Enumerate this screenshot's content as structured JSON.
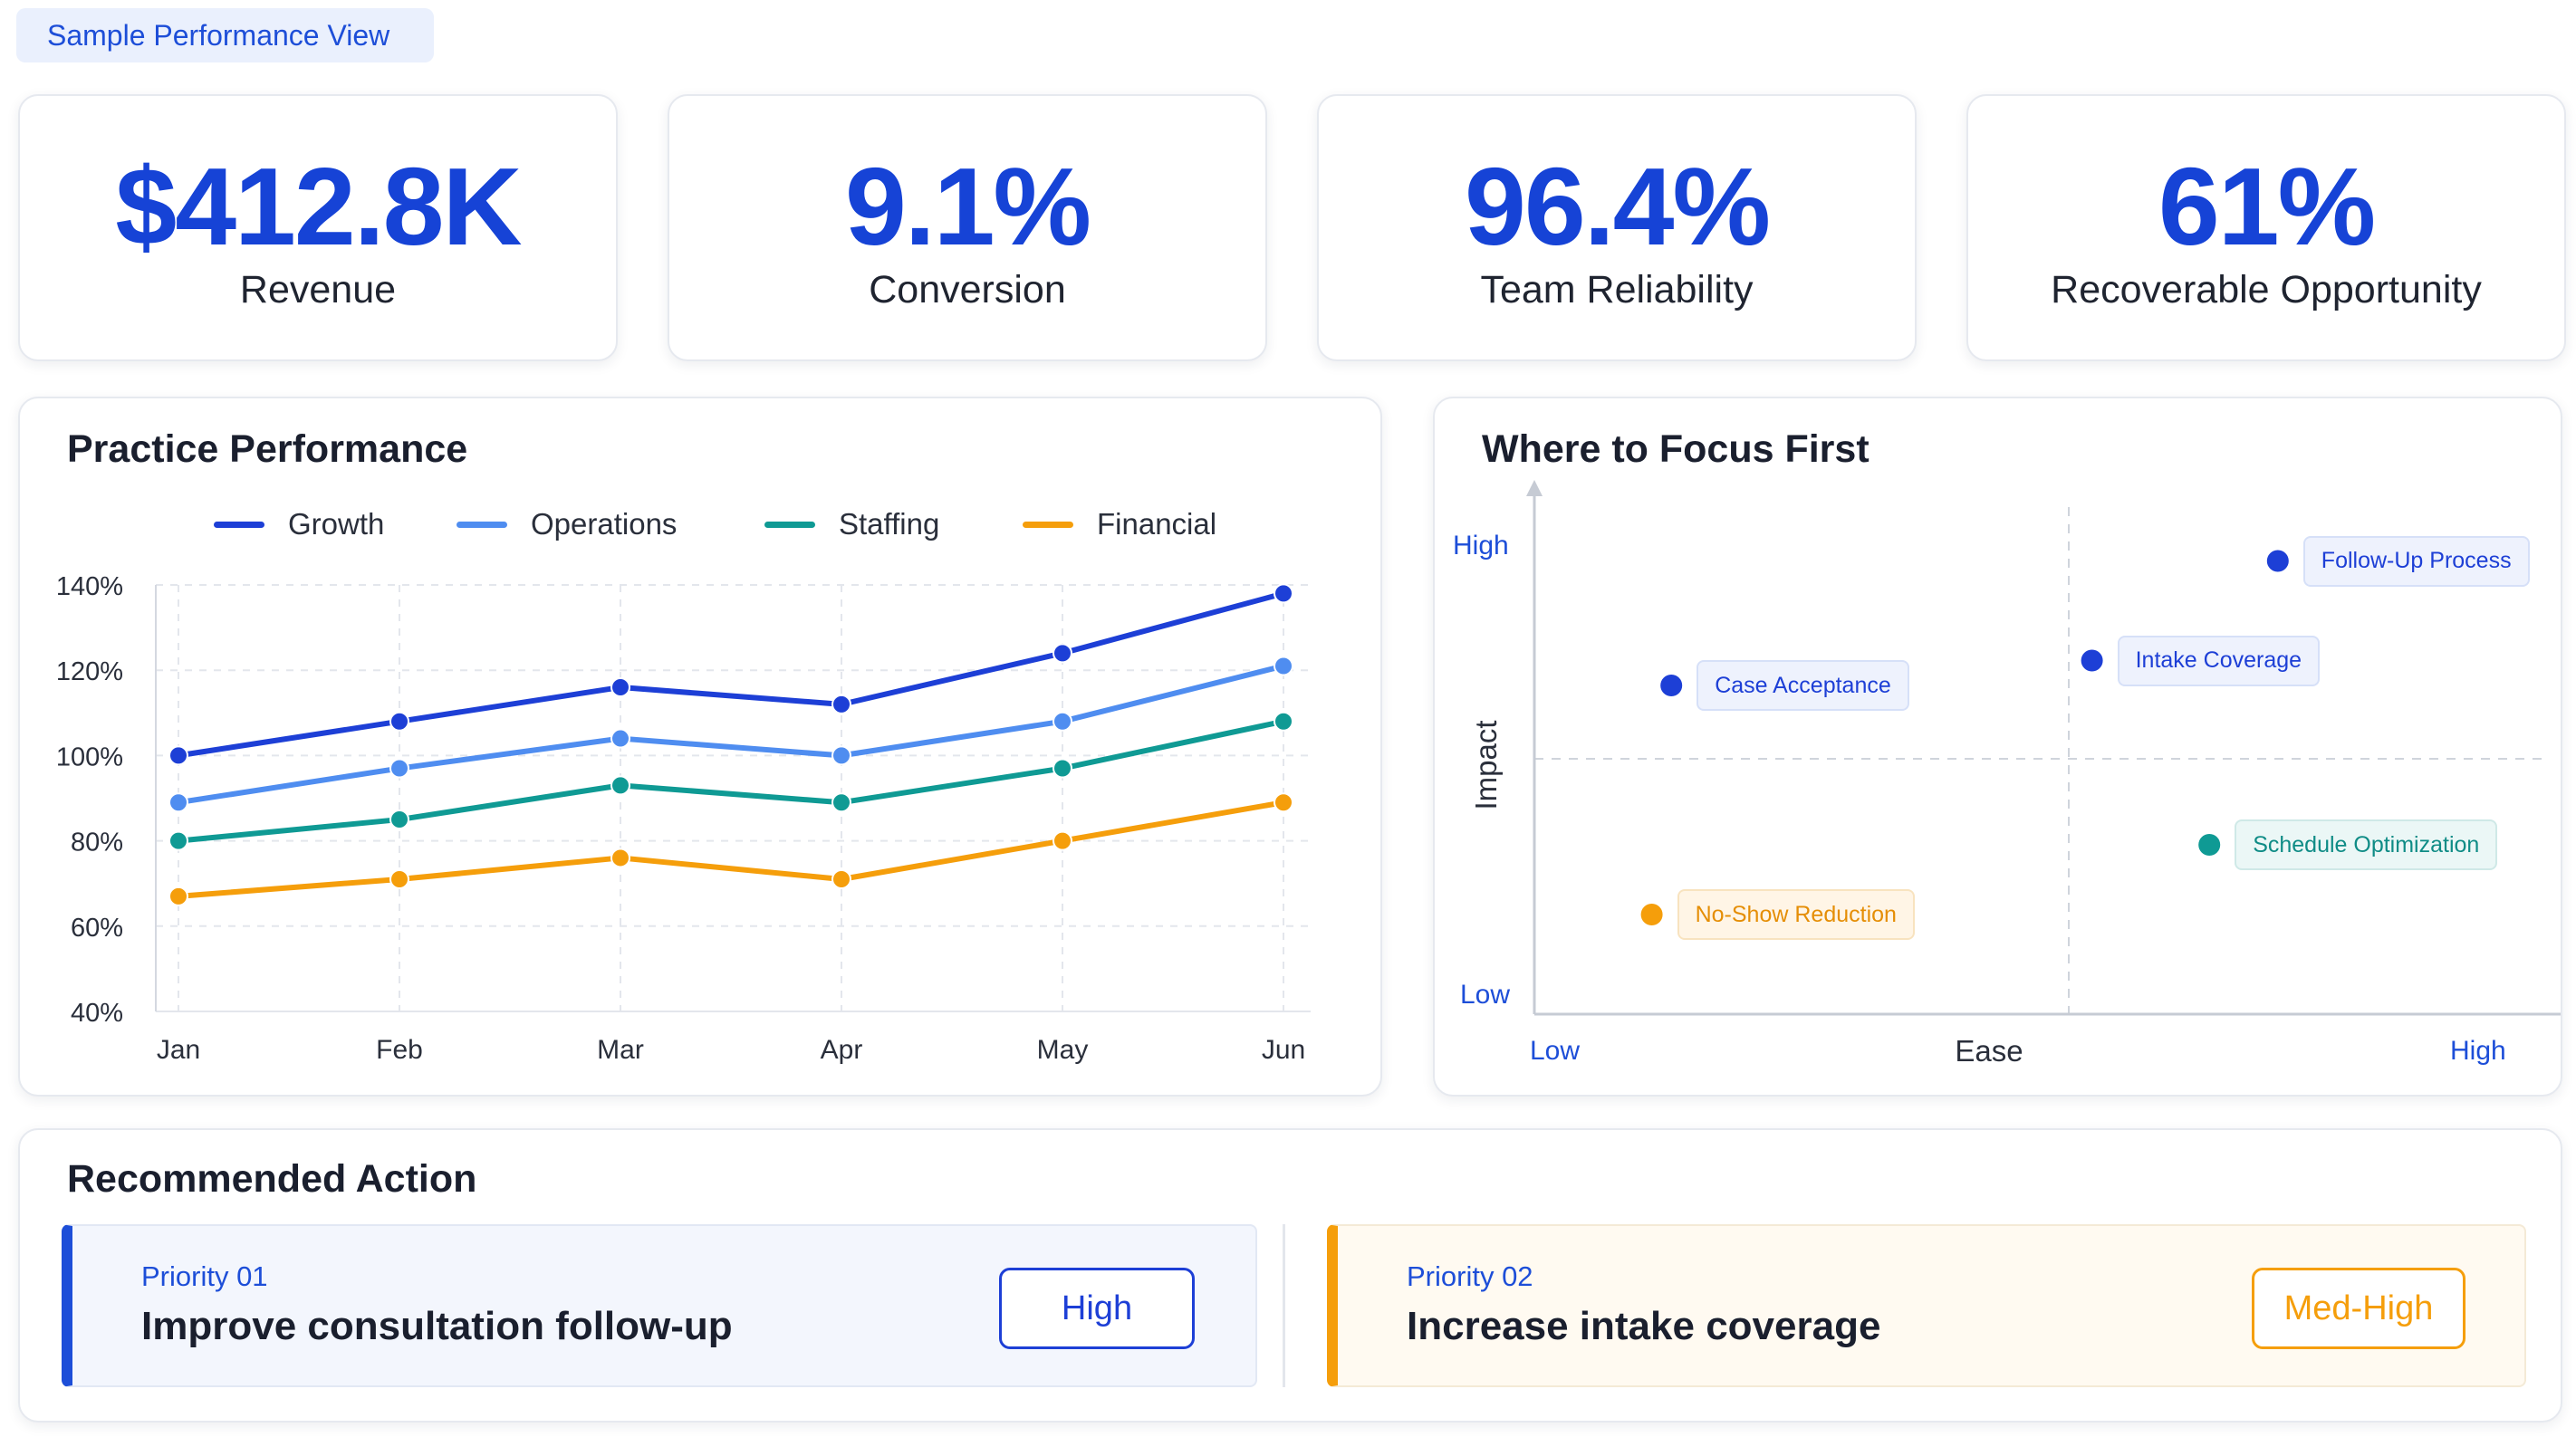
{
  "header": {
    "view_label": "Sample Performance View"
  },
  "kpis": [
    {
      "value": "$412.8K",
      "label": "Revenue"
    },
    {
      "value": "9.1%",
      "label": "Conversion"
    },
    {
      "value": "96.4%",
      "label": "Team Reliability"
    },
    {
      "value": "61%",
      "label": "Recoverable Opportunity"
    }
  ],
  "colors": {
    "accent": "#1643d6",
    "growth": "#1d3fd6",
    "operations": "#4f8df0",
    "staffing": "#0f9a94",
    "financial": "#f59e0b",
    "grid": "#e3e6ec"
  },
  "performance": {
    "title": "Practice Performance",
    "chart_data": {
      "type": "line",
      "categories": [
        "Jan",
        "Feb",
        "Mar",
        "Apr",
        "May",
        "Jun"
      ],
      "y_tick_labels": [
        "140%",
        "120%",
        "100%",
        "80%",
        "60%",
        "40%"
      ],
      "ylim": [
        40,
        140
      ],
      "legend_position": "top",
      "grid": true,
      "series": [
        {
          "name": "Growth",
          "color": "#1d3fd6",
          "values": [
            100,
            108,
            116,
            112,
            124,
            138
          ]
        },
        {
          "name": "Operations",
          "color": "#4f8df0",
          "values": [
            89,
            97,
            104,
            100,
            108,
            121
          ]
        },
        {
          "name": "Staffing",
          "color": "#0f9a94",
          "values": [
            80,
            85,
            93,
            89,
            97,
            108
          ]
        },
        {
          "name": "Financial",
          "color": "#f59e0b",
          "values": [
            67,
            71,
            76,
            71,
            80,
            89
          ]
        }
      ]
    }
  },
  "focus": {
    "title": "Where to Focus First",
    "chart_data": {
      "type": "scatter",
      "xlabel": "Ease",
      "ylabel": "Impact",
      "x_low": "Low",
      "x_high": "High",
      "y_low": "Low",
      "y_high": "High",
      "xlim": [
        0,
        1
      ],
      "ylim": [
        0,
        1
      ],
      "points": [
        {
          "label": "Follow-Up Process",
          "x": 0.76,
          "y": 0.91,
          "color": "#1d3fd6"
        },
        {
          "label": "Case Acceptance",
          "x": 0.14,
          "y": 0.66,
          "color": "#1d3fd6"
        },
        {
          "label": "Intake Coverage",
          "x": 0.57,
          "y": 0.71,
          "color": "#1d3fd6"
        },
        {
          "label": "Schedule Optimization",
          "x": 0.69,
          "y": 0.34,
          "color": "#0f9a94"
        },
        {
          "label": "No-Show Reduction",
          "x": 0.12,
          "y": 0.2,
          "color": "#f59e0b"
        }
      ]
    }
  },
  "actions": {
    "title": "Recommended Action",
    "items": [
      {
        "priority": "Priority 01",
        "title": "Improve consultation follow-up",
        "level": "High"
      },
      {
        "priority": "Priority 02",
        "title": "Increase intake coverage",
        "level": "Med-High"
      }
    ]
  }
}
